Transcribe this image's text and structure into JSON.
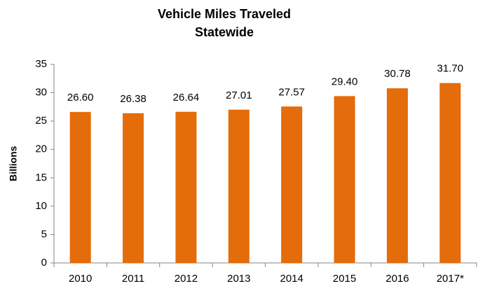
{
  "chart_data": {
    "type": "bar",
    "title": [
      "Vehicle Miles Traveled",
      "Statewide"
    ],
    "y_label": "Billions",
    "categories": [
      "2010",
      "2011",
      "2012",
      "2013",
      "2014",
      "2015",
      "2016",
      "2017*"
    ],
    "values": [
      26.6,
      26.38,
      26.64,
      27.01,
      27.57,
      29.4,
      30.78,
      31.7
    ],
    "value_labels": [
      "26.60",
      "26.38",
      "26.64",
      "27.01",
      "27.57",
      "29.40",
      "30.78",
      "31.70"
    ],
    "color": "#e46c0a",
    "ylim": [
      0,
      35
    ],
    "yticks": [
      0,
      5,
      10,
      15,
      20,
      25,
      30,
      35
    ],
    "grid": false
  }
}
